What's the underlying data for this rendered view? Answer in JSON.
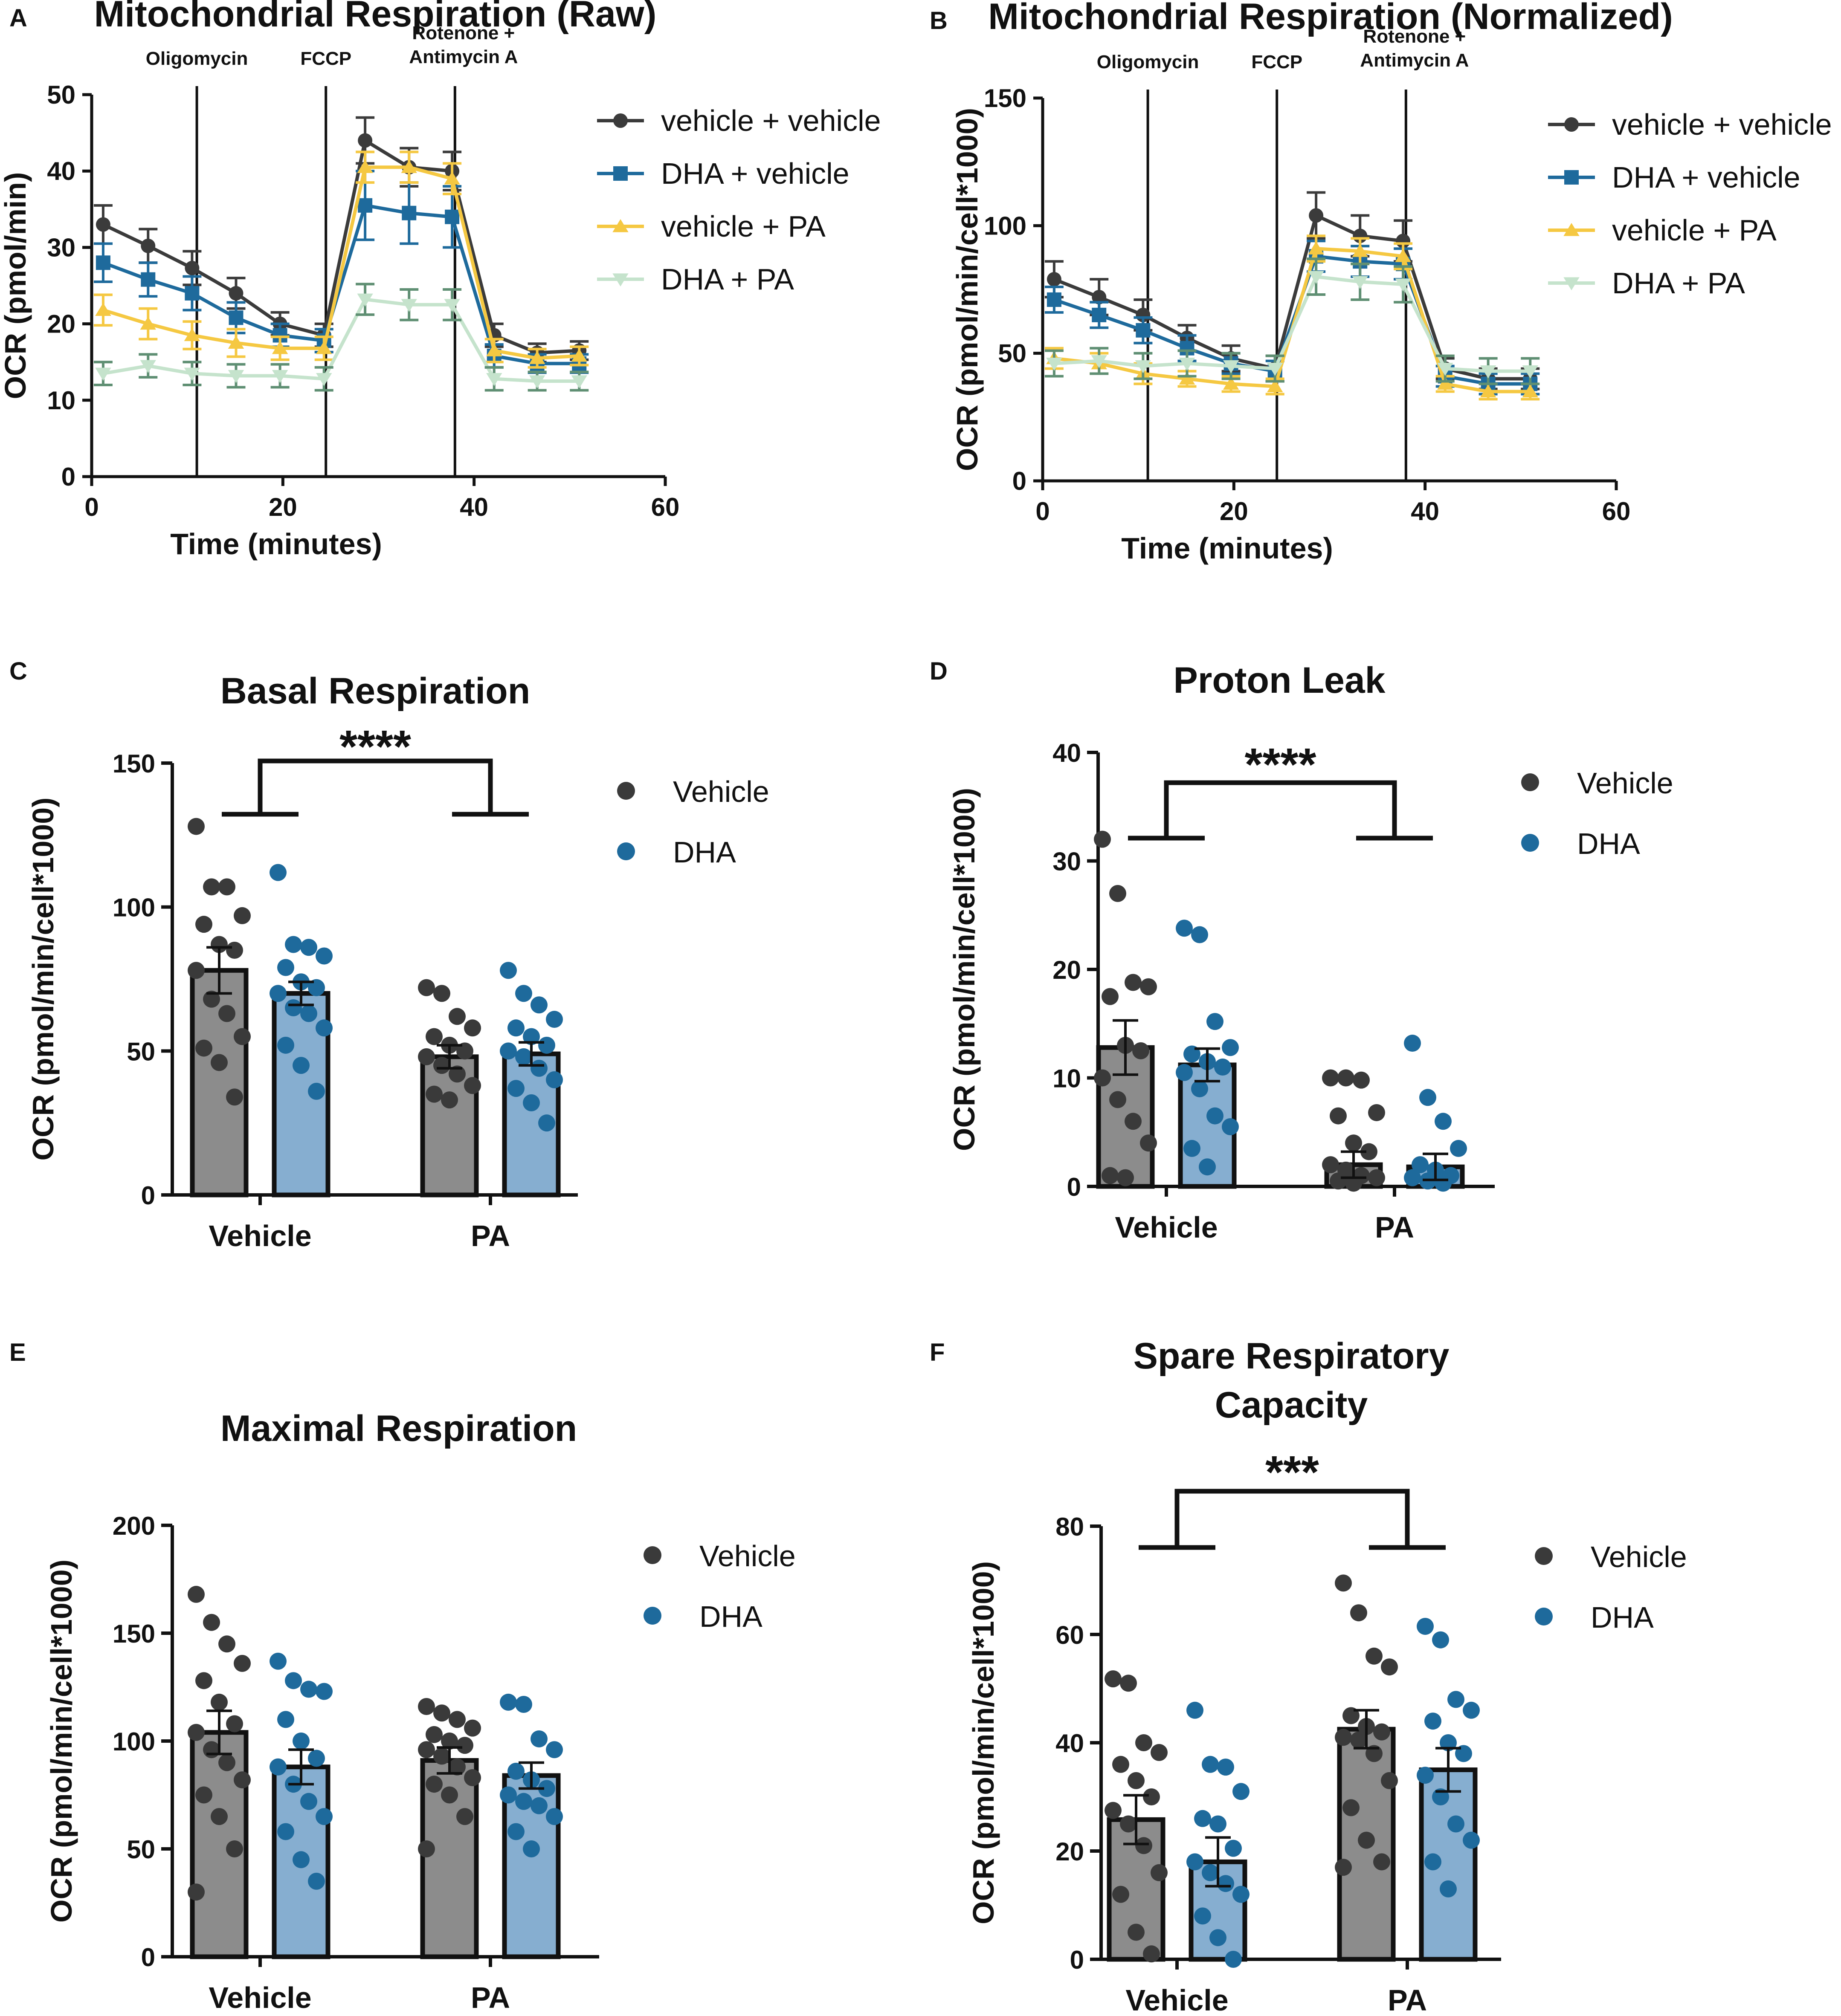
{
  "chart_data": [
    {
      "panel": "A",
      "type": "line",
      "title": "Mitochondrial Respiration (Raw)",
      "xlabel": "Time (minutes)",
      "ylabel": "OCR (pmol/min)",
      "xlim": [
        0,
        60
      ],
      "ylim": [
        0,
        50
      ],
      "xticks": [
        0,
        20,
        40,
        60
      ],
      "yticks": [
        0,
        10,
        20,
        30,
        40,
        50
      ],
      "legend": "top-right",
      "annotations": [
        {
          "x": 11,
          "label": "Oligomycin"
        },
        {
          "x": 24.5,
          "label": "FCCP"
        },
        {
          "x": 38,
          "label": "Rotenone +\nAntimycin A"
        }
      ],
      "x": [
        1.2,
        5.9,
        10.5,
        15.1,
        19.7,
        24.3,
        28.6,
        33.2,
        37.7,
        42.1,
        46.6,
        51
      ],
      "series": [
        {
          "name": "vehicle + vehicle",
          "marker": "circle",
          "color": "#3b3b3b",
          "values": [
            33,
            30.2,
            27.3,
            24,
            20,
            18.5,
            44,
            40.5,
            40,
            18.5,
            16.2,
            16.5
          ],
          "errors": [
            2.5,
            2.2,
            2.2,
            2,
            1.5,
            1.5,
            3,
            2.5,
            2.5,
            1.5,
            1.2,
            1.2
          ]
        },
        {
          "name": "DHA + vehicle",
          "marker": "square",
          "color": "#1e6a9c",
          "values": [
            28,
            25.8,
            24,
            20.8,
            18.5,
            17.8,
            35.5,
            34.5,
            34,
            15.8,
            14.8,
            14.8
          ],
          "errors": [
            2.5,
            2.2,
            2.2,
            2,
            1.5,
            1.5,
            4.5,
            4,
            4,
            1.5,
            1.2,
            1.2
          ]
        },
        {
          "name": "vehicle + PA",
          "marker": "triangle",
          "color": "#f5c842",
          "values": [
            21.8,
            20,
            18.5,
            17.5,
            16.8,
            16.8,
            40.5,
            40.5,
            39,
            16.5,
            15.5,
            15.8
          ],
          "errors": [
            2,
            2,
            1.8,
            1.8,
            1.5,
            1.5,
            2,
            2,
            2,
            1.5,
            1.2,
            1.2
          ]
        },
        {
          "name": "DHA + PA",
          "marker": "triangle-down",
          "color": "#c5e3cc",
          "values": [
            13.5,
            14.5,
            13.5,
            13.2,
            13.2,
            12.8,
            23.2,
            22.5,
            22.5,
            12.8,
            12.5,
            12.5
          ],
          "errors": [
            1.5,
            1.5,
            1.5,
            1.5,
            1.5,
            1.5,
            2,
            2,
            2,
            1.5,
            1.2,
            1.2
          ]
        }
      ]
    },
    {
      "panel": "B",
      "type": "line",
      "title": "Mitochondrial Respiration (Normalized)",
      "xlabel": "Time (minutes)",
      "ylabel": "OCR (pmol/min/cell*1000)",
      "xlim": [
        0,
        60
      ],
      "ylim": [
        0,
        150
      ],
      "xticks": [
        0,
        20,
        40,
        60
      ],
      "yticks": [
        0,
        50,
        100,
        150
      ],
      "legend": "top-right",
      "annotations": [
        {
          "x": 11,
          "label": "Oligomycin"
        },
        {
          "x": 24.5,
          "label": "FCCP"
        },
        {
          "x": 38,
          "label": "Rotenone +\nAntimycin A"
        }
      ],
      "x": [
        1.2,
        5.9,
        10.5,
        15.1,
        19.7,
        24.3,
        28.6,
        33.2,
        37.7,
        42.1,
        46.6,
        51
      ],
      "series": [
        {
          "name": "vehicle + vehicle",
          "marker": "circle",
          "color": "#3b3b3b",
          "values": [
            79,
            72,
            65,
            56,
            48,
            44,
            104,
            96,
            94,
            44,
            40,
            40
          ],
          "errors": [
            7,
            7,
            6,
            5,
            5,
            5,
            9,
            8,
            8,
            4,
            4,
            4
          ]
        },
        {
          "name": "DHA + vehicle",
          "marker": "square",
          "color": "#1e6a9c",
          "values": [
            71,
            65,
            59,
            52,
            46,
            43,
            88,
            86,
            85,
            41,
            38,
            38
          ],
          "errors": [
            5,
            5,
            5,
            5,
            4,
            4,
            6,
            6,
            6,
            4,
            4,
            4
          ]
        },
        {
          "name": "vehicle + PA",
          "marker": "triangle",
          "color": "#f5c842",
          "values": [
            48,
            46,
            42,
            40,
            38,
            37,
            91,
            90,
            88,
            38,
            35,
            35
          ],
          "errors": [
            4,
            4,
            4,
            3,
            3,
            3,
            5,
            5,
            5,
            3,
            3,
            3
          ]
        },
        {
          "name": "DHA + PA",
          "marker": "triangle-down",
          "color": "#c5e3cc",
          "values": [
            46,
            47,
            45,
            46,
            45,
            44,
            80,
            78,
            77,
            44,
            43,
            43
          ],
          "errors": [
            5,
            5,
            5,
            5,
            5,
            5,
            7,
            7,
            7,
            5,
            5,
            5
          ]
        }
      ]
    },
    {
      "panel": "C",
      "type": "bar",
      "title": "Basal Respiration",
      "significance": "****",
      "xlabel": "",
      "ylabel": "OCR (pmol/min/cell*1000)",
      "ylim": [
        0,
        150
      ],
      "yticks": [
        0,
        50,
        100,
        150
      ],
      "categories": [
        "Vehicle",
        "PA"
      ],
      "legend": "top-right",
      "series": [
        {
          "name": "Vehicle",
          "bar_color": "#8c8c8c",
          "dot_color": "#3a3a3a",
          "values": [
            78,
            48
          ],
          "errors": [
            8,
            4
          ],
          "points": [
            [
              128,
              107,
              107,
              97,
              94,
              87,
              85,
              78,
              68,
              63,
              55,
              51,
              46,
              34
            ],
            [
              72,
              70,
              62,
              58,
              55,
              52,
              50,
              48,
              45,
              42,
              38,
              35,
              33
            ]
          ]
        },
        {
          "name": "DHA",
          "bar_color": "#86aed0",
          "dot_color": "#1e6a9c",
          "values": [
            70,
            49
          ],
          "errors": [
            4,
            4
          ],
          "points": [
            [
              112,
              87,
              86,
              83,
              79,
              74,
              72,
              70,
              65,
              63,
              58,
              52,
              45,
              36
            ],
            [
              78,
              70,
              66,
              61,
              58,
              55,
              52,
              50,
              48,
              44,
              40,
              37,
              32,
              25
            ]
          ]
        }
      ]
    },
    {
      "panel": "D",
      "type": "bar",
      "title": "Proton Leak",
      "significance": "****",
      "xlabel": "",
      "ylabel": "OCR (pmol/min/cell*1000)",
      "ylim": [
        0,
        40
      ],
      "yticks": [
        0,
        10,
        20,
        30,
        40
      ],
      "categories": [
        "Vehicle",
        "PA"
      ],
      "legend": "top-right",
      "series": [
        {
          "name": "Vehicle",
          "bar_color": "#8c8c8c",
          "dot_color": "#3a3a3a",
          "values": [
            12.8,
            2.0
          ],
          "errors": [
            2.5,
            1.2
          ],
          "points": [
            [
              32,
              27,
              18.8,
              18.4,
              17.5,
              13,
              12.5,
              10,
              8,
              6,
              4,
              1,
              0.8
            ],
            [
              10,
              10,
              9.8,
              6.8,
              6.5,
              4,
              3.2,
              2,
              1.5,
              1,
              0.8,
              0.5,
              0.3
            ]
          ]
        },
        {
          "name": "DHA",
          "bar_color": "#86aed0",
          "dot_color": "#1e6a9c",
          "values": [
            11.2,
            1.8
          ],
          "errors": [
            1.5,
            1.2
          ],
          "points": [
            [
              23.8,
              23.2,
              15.2,
              12.8,
              12.2,
              11.5,
              11,
              10.5,
              9,
              6.5,
              5.5,
              3.5,
              1.8
            ],
            [
              13.2,
              8.2,
              6,
              3.5,
              2,
              1.5,
              1,
              0.8,
              0.5,
              0.3
            ]
          ]
        }
      ]
    },
    {
      "panel": "E",
      "type": "bar",
      "title": "Maximal Respiration",
      "xlabel": "",
      "ylabel": "OCR (pmol/min/cell*1000)",
      "ylim": [
        0,
        200
      ],
      "yticks": [
        0,
        50,
        100,
        150,
        200
      ],
      "categories": [
        "Vehicle",
        "PA"
      ],
      "legend": "top-right",
      "series": [
        {
          "name": "Vehicle",
          "bar_color": "#8c8c8c",
          "dot_color": "#3a3a3a",
          "values": [
            104,
            91
          ],
          "errors": [
            10,
            6
          ],
          "points": [
            [
              168,
              155,
              145,
              136,
              128,
              118,
              108,
              104,
              96,
              90,
              82,
              75,
              65,
              50,
              30
            ],
            [
              116,
              113,
              110,
              106,
              103,
              100,
              98,
              96,
              93,
              88,
              83,
              80,
              75,
              65,
              50
            ]
          ]
        },
        {
          "name": "DHA",
          "bar_color": "#86aed0",
          "dot_color": "#1e6a9c",
          "values": [
            88,
            84
          ],
          "errors": [
            8,
            6
          ],
          "points": [
            [
              137,
              128,
              124,
              123,
              110,
              100,
              92,
              88,
              80,
              72,
              65,
              58,
              45,
              35
            ],
            [
              118,
              117,
              101,
              96,
              86,
              82,
              78,
              75,
              72,
              70,
              65,
              58,
              50
            ]
          ]
        }
      ]
    },
    {
      "panel": "F",
      "type": "bar",
      "title": "Spare Respiratory\nCapacity",
      "significance": "***",
      "xlabel": "",
      "ylabel": "OCR (pmol/min/cell*1000)",
      "ylim": [
        0,
        80
      ],
      "yticks": [
        0,
        20,
        40,
        60,
        80
      ],
      "categories": [
        "Vehicle",
        "PA"
      ],
      "legend": "top-right",
      "series": [
        {
          "name": "Vehicle",
          "bar_color": "#8c8c8c",
          "dot_color": "#3a3a3a",
          "values": [
            25.8,
            42.5
          ],
          "errors": [
            4.5,
            3.5
          ],
          "points": [
            [
              51.8,
              51,
              40,
              38.2,
              36,
              33,
              30,
              27.5,
              25,
              21,
              16,
              12,
              5,
              1
            ],
            [
              69.5,
              64,
              56,
              54,
              45,
              43,
              42,
              41,
              40.5,
              38,
              33,
              28,
              22,
              18,
              17
            ]
          ]
        },
        {
          "name": "DHA",
          "bar_color": "#86aed0",
          "dot_color": "#1e6a9c",
          "values": [
            18,
            35
          ],
          "errors": [
            4.5,
            4
          ],
          "points": [
            [
              46,
              36,
              35.5,
              31,
              26,
              25,
              20.5,
              18,
              16,
              14,
              12,
              8,
              4,
              0
            ],
            [
              61.5,
              59,
              48,
              46,
              44,
              40,
              38,
              34,
              30,
              25,
              22,
              18,
              13
            ]
          ]
        }
      ]
    }
  ]
}
